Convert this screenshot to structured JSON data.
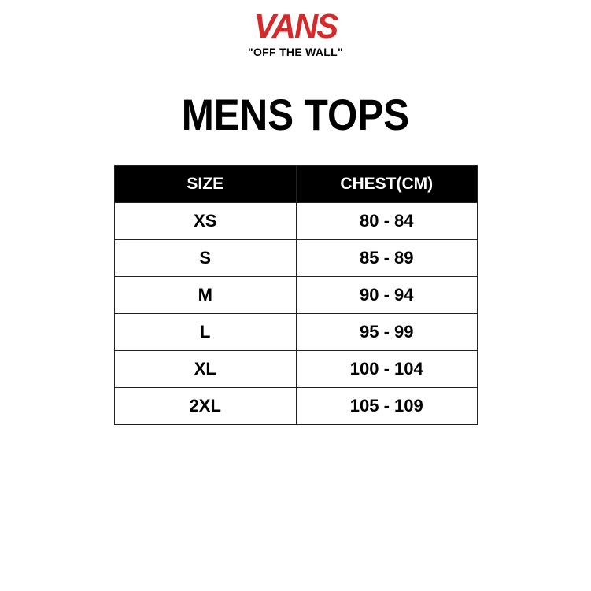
{
  "logo": {
    "brand": "VANS",
    "tagline": "\"OFF THE WALL\"",
    "brand_color": "#d42a2a"
  },
  "title": "MENS TOPS",
  "table": {
    "headers": [
      "SIZE",
      "CHEST(CM)"
    ],
    "rows": [
      [
        "XS",
        "80 - 84"
      ],
      [
        "S",
        "85 - 89"
      ],
      [
        "M",
        "90 - 94"
      ],
      [
        "L",
        "95 - 99"
      ],
      [
        "XL",
        "100 - 104"
      ],
      [
        "2XL",
        "105 - 109"
      ]
    ]
  }
}
